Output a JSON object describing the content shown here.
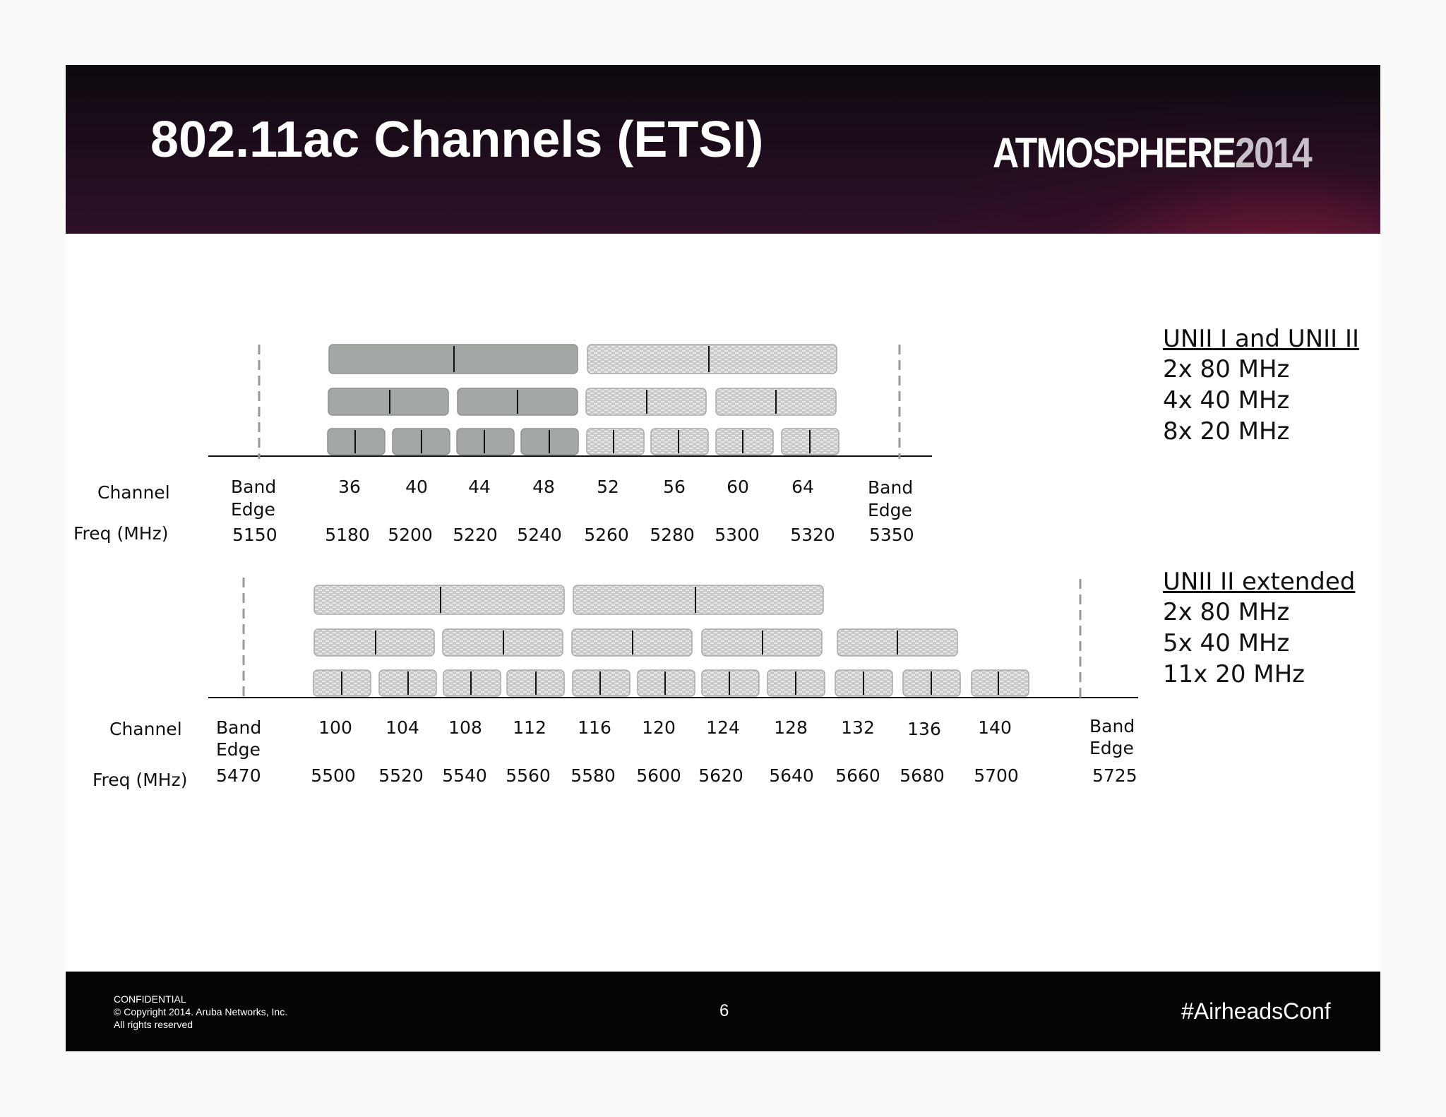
{
  "title": "802.11ac Channels (ETSI)",
  "brand": {
    "word": "ATMOSPHERE",
    "year": "2014"
  },
  "footer": {
    "confidential": "CONFIDENTIAL",
    "copyright": "© Copyright 2014. Aruba Networks, Inc.",
    "rights": "All rights reserved",
    "page": "6",
    "hashtag": "#AirheadsConf"
  },
  "colors": {
    "solid_block": "#a4a8a4",
    "hatched_block": "#bcbcbc",
    "header_bg": "#1a0c18",
    "footer_bg": "#050505"
  },
  "row_labels": {
    "channel": "Channel",
    "freq": "Freq (MHz)"
  },
  "band_edge": {
    "line1": "Band",
    "line2": "Edge"
  },
  "diagram1": {
    "legend": {
      "heading": "UNII I and UNII II",
      "lines": [
        "2x 80 MHz",
        "4x 40 MHz",
        "8x 20 MHz"
      ]
    },
    "channels": [
      "36",
      "40",
      "44",
      "48",
      "52",
      "56",
      "60",
      "64"
    ],
    "freqs": [
      "5180",
      "5200",
      "5220",
      "5240",
      "5260",
      "5280",
      "5300",
      "5320"
    ],
    "edge_low": "5150",
    "edge_high": "5350",
    "solid_channels": [
      "36",
      "40",
      "44",
      "48"
    ],
    "hatched_channels": [
      "52",
      "56",
      "60",
      "64"
    ]
  },
  "diagram2": {
    "legend": {
      "heading": "UNII II extended",
      "lines": [
        "2x 80 MHz",
        "5x 40 MHz",
        "11x 20 MHz"
      ]
    },
    "channels": [
      "100",
      "104",
      "108",
      "112",
      "116",
      "120",
      "124",
      "128",
      "132",
      "136",
      "140"
    ],
    "freqs": [
      "5500",
      "5520",
      "5540",
      "5560",
      "5580",
      "5600",
      "5620",
      "5640",
      "5660",
      "5680",
      "5700"
    ],
    "edge_low": "5470",
    "edge_high": "5725",
    "hatched_channels": [
      "100",
      "104",
      "108",
      "112",
      "116",
      "120",
      "124",
      "128",
      "132",
      "136",
      "140"
    ]
  }
}
